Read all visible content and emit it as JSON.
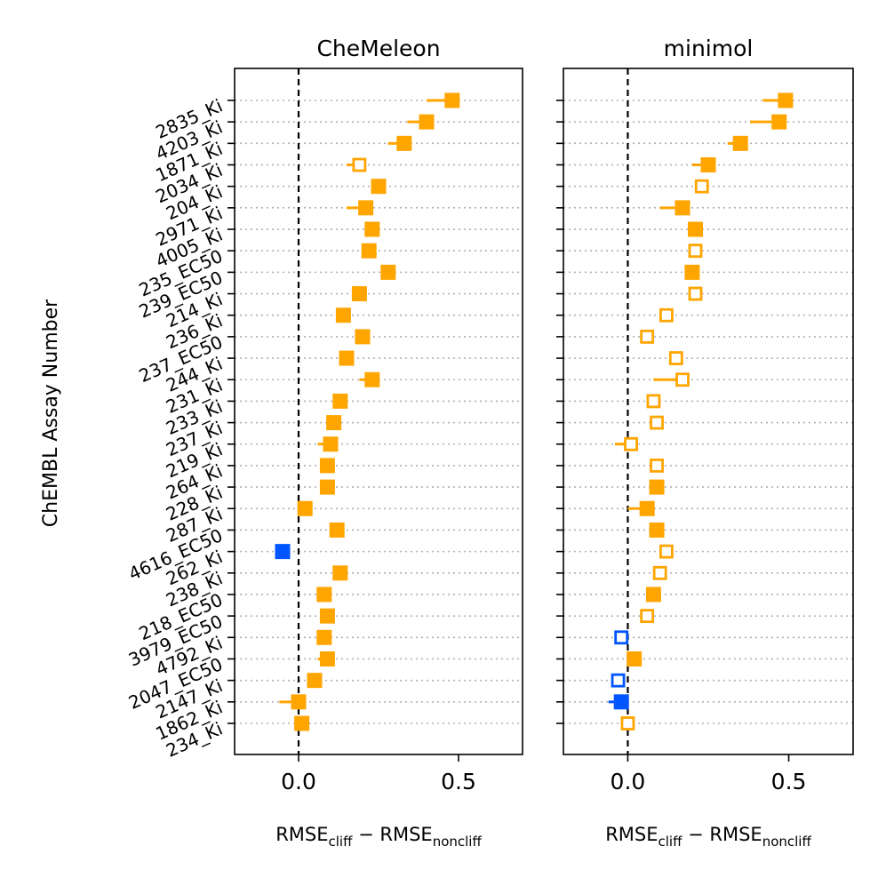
{
  "chart_data": {
    "type": "scatter",
    "ylabel": "ChEMBL Assay Number",
    "xlabel_main": "RMSE",
    "xlabel_sub1": "cliff",
    "xlabel_minus": "−",
    "xlabel_sub2": "noncliff",
    "colors": {
      "positive": "#FFA500",
      "negative": "#0055FF",
      "grid": "#b0b0b0"
    },
    "categories": [
      "2835_Ki",
      "4203_Ki",
      "1871_Ki",
      "2034_Ki",
      "204_Ki",
      "2971_Ki",
      "4005_Ki",
      "235_EC50",
      "239_EC50",
      "214_Ki",
      "236_Ki",
      "237_EC50",
      "244_Ki",
      "231_Ki",
      "233_Ki",
      "237_Ki",
      "219_Ki",
      "264_Ki",
      "228_Ki",
      "287_Ki",
      "4616_EC50",
      "262_Ki",
      "238_Ki",
      "218_EC50",
      "3979_EC50",
      "4792_Ki",
      "2047_EC50",
      "2147_Ki",
      "1862_Ki",
      "234_Ki"
    ],
    "xlim": [
      -0.2,
      0.7
    ],
    "xticks": [
      0.0,
      0.5
    ],
    "xtick_labels": [
      "0.0",
      "0.5"
    ],
    "panels": [
      {
        "title": "CheMeleon",
        "points": [
          {
            "value": 0.48,
            "lo": 0.4,
            "filled": true
          },
          {
            "value": 0.4,
            "lo": 0.34,
            "filled": true
          },
          {
            "value": 0.33,
            "lo": 0.28,
            "filled": true
          },
          {
            "value": 0.19,
            "lo": 0.15,
            "filled": false
          },
          {
            "value": 0.25,
            "lo": 0.25,
            "filled": true
          },
          {
            "value": 0.21,
            "lo": 0.15,
            "filled": true
          },
          {
            "value": 0.23,
            "lo": 0.23,
            "filled": true
          },
          {
            "value": 0.22,
            "lo": 0.22,
            "filled": true
          },
          {
            "value": 0.28,
            "lo": 0.28,
            "filled": true
          },
          {
            "value": 0.19,
            "lo": 0.19,
            "filled": true
          },
          {
            "value": 0.14,
            "lo": 0.14,
            "filled": true
          },
          {
            "value": 0.2,
            "lo": 0.2,
            "filled": true
          },
          {
            "value": 0.15,
            "lo": 0.15,
            "filled": true
          },
          {
            "value": 0.23,
            "lo": 0.19,
            "filled": true
          },
          {
            "value": 0.13,
            "lo": 0.13,
            "filled": true
          },
          {
            "value": 0.11,
            "lo": 0.11,
            "filled": true
          },
          {
            "value": 0.1,
            "lo": 0.06,
            "filled": true
          },
          {
            "value": 0.09,
            "lo": 0.09,
            "filled": true
          },
          {
            "value": 0.09,
            "lo": 0.09,
            "filled": true
          },
          {
            "value": 0.02,
            "lo": 0.02,
            "filled": true
          },
          {
            "value": 0.12,
            "lo": 0.12,
            "filled": true
          },
          {
            "value": -0.05,
            "lo": -0.05,
            "filled": true
          },
          {
            "value": 0.13,
            "lo": 0.13,
            "filled": true
          },
          {
            "value": 0.08,
            "lo": 0.08,
            "filled": true
          },
          {
            "value": 0.09,
            "lo": 0.09,
            "filled": true
          },
          {
            "value": 0.08,
            "lo": 0.08,
            "filled": true
          },
          {
            "value": 0.09,
            "lo": 0.06,
            "filled": true
          },
          {
            "value": 0.05,
            "lo": 0.05,
            "filled": true
          },
          {
            "value": 0.0,
            "lo": -0.06,
            "filled": true
          },
          {
            "value": 0.01,
            "lo": 0.01,
            "filled": true
          }
        ]
      },
      {
        "title": "minimol",
        "points": [
          {
            "value": 0.49,
            "lo": 0.42,
            "filled": true
          },
          {
            "value": 0.47,
            "lo": 0.38,
            "filled": true
          },
          {
            "value": 0.35,
            "lo": 0.31,
            "filled": true
          },
          {
            "value": 0.25,
            "lo": 0.2,
            "filled": true
          },
          {
            "value": 0.23,
            "lo": 0.23,
            "filled": false
          },
          {
            "value": 0.17,
            "lo": 0.1,
            "filled": true
          },
          {
            "value": 0.21,
            "lo": 0.21,
            "filled": true
          },
          {
            "value": 0.21,
            "lo": 0.21,
            "filled": false
          },
          {
            "value": 0.2,
            "lo": 0.2,
            "filled": true
          },
          {
            "value": 0.21,
            "lo": 0.21,
            "filled": false
          },
          {
            "value": 0.12,
            "lo": 0.12,
            "filled": false
          },
          {
            "value": 0.06,
            "lo": 0.04,
            "filled": false
          },
          {
            "value": 0.15,
            "lo": 0.15,
            "filled": false
          },
          {
            "value": 0.17,
            "lo": 0.08,
            "filled": false
          },
          {
            "value": 0.08,
            "lo": 0.08,
            "filled": false
          },
          {
            "value": 0.09,
            "lo": 0.09,
            "filled": false
          },
          {
            "value": 0.01,
            "lo": -0.04,
            "filled": false
          },
          {
            "value": 0.09,
            "lo": 0.09,
            "filled": false
          },
          {
            "value": 0.09,
            "lo": 0.09,
            "filled": true
          },
          {
            "value": 0.06,
            "lo": 0.0,
            "filled": true
          },
          {
            "value": 0.09,
            "lo": 0.09,
            "filled": true
          },
          {
            "value": 0.12,
            "lo": 0.12,
            "filled": false
          },
          {
            "value": 0.1,
            "lo": 0.1,
            "filled": false
          },
          {
            "value": 0.08,
            "lo": 0.08,
            "filled": true
          },
          {
            "value": 0.06,
            "lo": 0.06,
            "filled": false
          },
          {
            "value": -0.02,
            "lo": -0.02,
            "filled": false
          },
          {
            "value": 0.02,
            "lo": 0.02,
            "filled": true
          },
          {
            "value": -0.03,
            "lo": -0.03,
            "filled": false
          },
          {
            "value": -0.02,
            "lo": -0.06,
            "filled": true
          },
          {
            "value": 0.0,
            "lo": 0.0,
            "filled": false
          }
        ]
      }
    ]
  }
}
